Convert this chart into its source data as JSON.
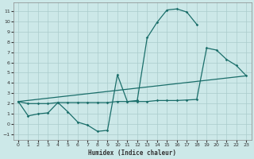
{
  "xlabel": "Humidex (Indice chaleur)",
  "bg_color": "#cce8e8",
  "line_color": "#1a6e6a",
  "grid_color": "#aacccc",
  "xlim": [
    -0.5,
    23.5
  ],
  "ylim": [
    -1.5,
    11.8
  ],
  "xticks": [
    0,
    1,
    2,
    3,
    4,
    5,
    6,
    7,
    8,
    9,
    10,
    11,
    12,
    13,
    14,
    15,
    16,
    17,
    18,
    19,
    20,
    21,
    22,
    23
  ],
  "yticks": [
    -1,
    0,
    1,
    2,
    3,
    4,
    5,
    6,
    7,
    8,
    9,
    10,
    11
  ],
  "line1_x": [
    0,
    1,
    2,
    3,
    4,
    5,
    6,
    7,
    8,
    9,
    10,
    11,
    12,
    13,
    14,
    15,
    16,
    17,
    18
  ],
  "line1_y": [
    2.2,
    0.8,
    1.0,
    1.1,
    2.1,
    1.2,
    0.2,
    -0.1,
    -0.7,
    -0.6,
    4.8,
    2.2,
    2.3,
    8.4,
    9.9,
    11.1,
    11.2,
    10.9,
    9.7
  ],
  "line2_x": [
    0,
    1,
    2,
    3,
    4,
    5,
    6,
    7,
    8,
    9,
    10,
    11,
    12,
    13,
    14,
    15,
    16,
    17,
    18,
    19,
    20,
    21,
    22,
    23
  ],
  "line2_y": [
    2.2,
    2.0,
    2.0,
    2.0,
    2.1,
    2.1,
    2.1,
    2.1,
    2.1,
    2.1,
    2.2,
    2.2,
    2.2,
    2.2,
    2.3,
    2.3,
    2.3,
    2.35,
    2.4,
    7.4,
    7.2,
    6.3,
    5.7,
    4.7
  ],
  "line3_x": [
    0,
    23
  ],
  "line3_y": [
    2.2,
    4.7
  ]
}
